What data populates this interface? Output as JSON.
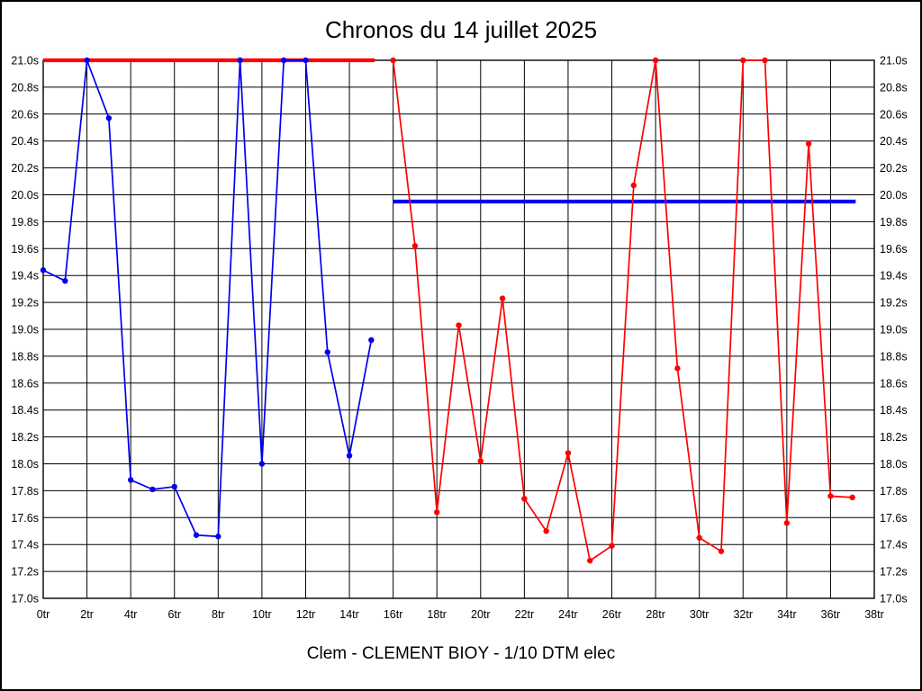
{
  "figure": {
    "title": "Chronos du 14 juillet 2025",
    "caption": "Clem - CLEMENT BIOY - 1/10 DTM elec"
  },
  "colors": {
    "series_blue": "#0000ee",
    "series_red": "#ff0000",
    "grid": "#000000",
    "text": "#000000",
    "background": "#ffffff"
  },
  "chart_data": {
    "type": "line",
    "title": "Chronos du 14 juillet 2025",
    "caption": "Clem - CLEMENT BIOY - 1/10 DTM elec",
    "x_unit": "tr",
    "y_unit": "s",
    "xlim": [
      0,
      38
    ],
    "ylim": [
      17.0,
      21.0
    ],
    "grid": true,
    "legend": "none",
    "x_ticks": {
      "values": [
        0,
        2,
        4,
        6,
        8,
        10,
        12,
        14,
        16,
        18,
        20,
        22,
        24,
        26,
        28,
        30,
        32,
        34,
        36,
        38
      ],
      "labels": [
        "0tr",
        "2tr",
        "4tr",
        "6tr",
        "8tr",
        "10tr",
        "12tr",
        "14tr",
        "16tr",
        "18tr",
        "20tr",
        "22tr",
        "24tr",
        "26tr",
        "28tr",
        "30tr",
        "32tr",
        "34tr",
        "36tr",
        "38tr"
      ]
    },
    "y_ticks": {
      "values": [
        21.0,
        20.8,
        20.6,
        20.4,
        20.2,
        20.0,
        19.8,
        19.6,
        19.4,
        19.2,
        19.0,
        18.8,
        18.6,
        18.4,
        18.2,
        18.0,
        17.8,
        17.6,
        17.4,
        17.2,
        17.0
      ],
      "labels": [
        "21.0s",
        "20.8s",
        "20.6s",
        "20.4s",
        "20.2s",
        "20.0s",
        "19.8s",
        "19.6s",
        "19.4s",
        "19.2s",
        "19.0s",
        "18.8s",
        "18.6s",
        "18.4s",
        "18.2s",
        "18.0s",
        "17.8s",
        "17.6s",
        "17.4s",
        "17.2s",
        "17.0s"
      ]
    },
    "series": [
      {
        "name": "series-blue",
        "color": "#0000ee",
        "points": [
          [
            0,
            19.44
          ],
          [
            1,
            19.36
          ],
          [
            2,
            21.0
          ],
          [
            3,
            20.57
          ],
          [
            4,
            17.88
          ],
          [
            5,
            17.81
          ],
          [
            6,
            17.83
          ],
          [
            7,
            17.47
          ],
          [
            8,
            17.46
          ],
          [
            9,
            21.0
          ],
          [
            10,
            18.0
          ],
          [
            11,
            21.0
          ],
          [
            12,
            21.0
          ],
          [
            13,
            18.83
          ],
          [
            14,
            18.06
          ],
          [
            15,
            18.92
          ]
        ]
      },
      {
        "name": "series-red",
        "color": "#ff0000",
        "points": [
          [
            16,
            21.0
          ],
          [
            17,
            19.62
          ],
          [
            18,
            17.64
          ],
          [
            19,
            19.03
          ],
          [
            20,
            18.02
          ],
          [
            21,
            19.23
          ],
          [
            22,
            17.74
          ],
          [
            23,
            17.5
          ],
          [
            24,
            18.08
          ],
          [
            25,
            17.28
          ],
          [
            26,
            17.39
          ],
          [
            27,
            20.07
          ],
          [
            28,
            21.0
          ],
          [
            29,
            18.71
          ],
          [
            30,
            17.45
          ],
          [
            31,
            17.35
          ],
          [
            32,
            21.0
          ],
          [
            33,
            21.0
          ],
          [
            34,
            17.56
          ],
          [
            35,
            20.38
          ],
          [
            36,
            17.76
          ],
          [
            37,
            17.75
          ]
        ]
      }
    ],
    "reference_lines": [
      {
        "name": "reference-line-red-top",
        "color": "#ff0000",
        "y": 21.0,
        "x_start": 0,
        "x_end": 15.15,
        "stroke_width": 4.2
      },
      {
        "name": "reference-line-blue",
        "color": "#0000ee",
        "y": 19.95,
        "x_start": 16,
        "x_end": 37.15,
        "stroke_width": 4.2
      }
    ]
  }
}
